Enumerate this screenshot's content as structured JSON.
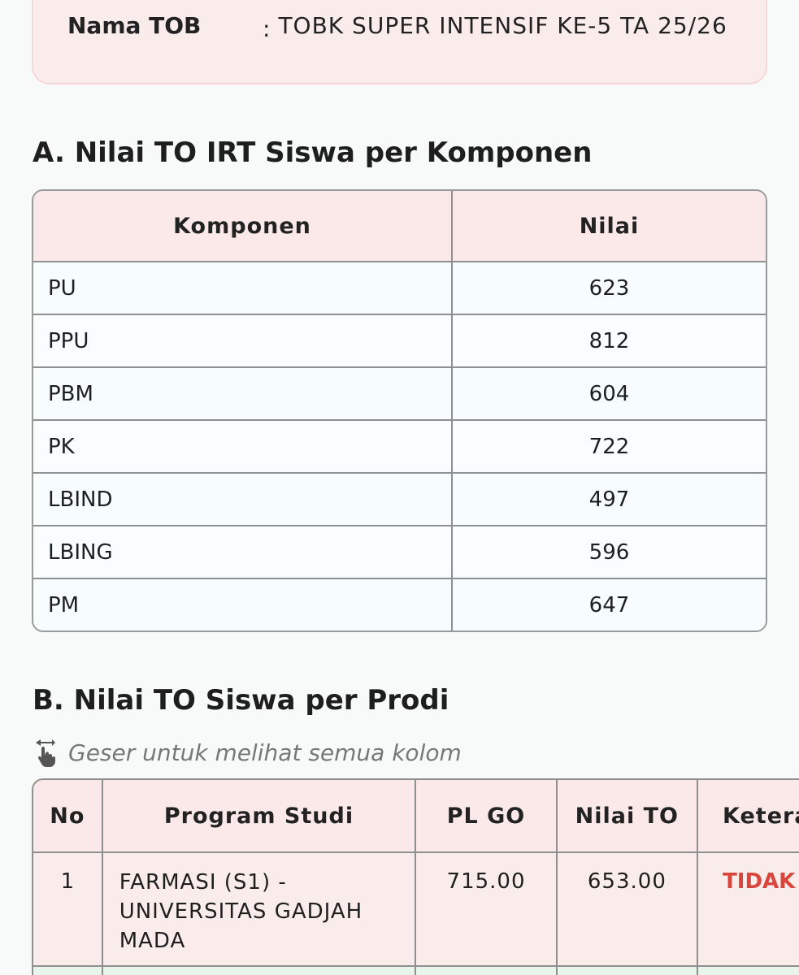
{
  "info": {
    "label": "Nama TOB",
    "colon": ":",
    "value": "TOBK SUPER INTENSIF KE-5 TA 25/26"
  },
  "section_a": {
    "title": "A. Nilai TO IRT Siswa per Komponen",
    "headers": {
      "komponen": "Komponen",
      "nilai": "Nilai"
    },
    "rows": [
      {
        "komponen": "PU",
        "nilai": "623"
      },
      {
        "komponen": "PPU",
        "nilai": "812"
      },
      {
        "komponen": "PBM",
        "nilai": "604"
      },
      {
        "komponen": "PK",
        "nilai": "722"
      },
      {
        "komponen": "LBIND",
        "nilai": "497"
      },
      {
        "komponen": "LBING",
        "nilai": "596"
      },
      {
        "komponen": "PM",
        "nilai": "647"
      }
    ]
  },
  "section_b": {
    "title": "B. Nilai TO Siswa per Prodi",
    "hint": "Geser untuk melihat semua kolom",
    "hint_icon": "swipe-hand-icon",
    "headers": {
      "no": "No",
      "prodi": "Program Studi",
      "pl_go": "PL GO",
      "nilai_to": "Nilai TO",
      "ket": "Keterangan"
    },
    "rows": [
      {
        "no": "1",
        "prodi": "FARMASI (S1) - UNIVERSITAS GADJAH MADA",
        "pl_go": "715.00",
        "nilai_to": "653.00",
        "ket": "TIDAK LULUS"
      }
    ]
  },
  "colors": {
    "card_bg": "#fbecec",
    "header_bg": "#fbe9ea",
    "fail_text": "#d9473c",
    "border": "#8f8f8f"
  }
}
